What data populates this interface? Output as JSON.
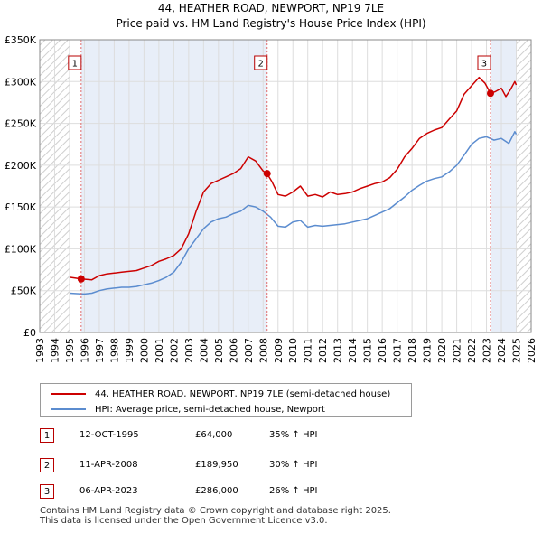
{
  "title": "44, HEATHER ROAD, NEWPORT, NP19 7LE",
  "subtitle": "Price paid vs. HM Land Registry's House Price Index (HPI)",
  "colors": {
    "red": "#cc0000",
    "blue": "#5b8ccf",
    "hatch": "#d0d0d0",
    "grid": "#dddddd",
    "shade": "#e8eef8"
  },
  "legend": {
    "red_label": "44, HEATHER ROAD, NEWPORT, NP19 7LE (semi-detached house)",
    "blue_label": "HPI: Average price, semi-detached house, Newport"
  },
  "transactions": [
    {
      "num": "1",
      "date": "12-OCT-1995",
      "price": "£64,000",
      "hpi": "35% ↑ HPI"
    },
    {
      "num": "2",
      "date": "11-APR-2008",
      "price": "£189,950",
      "hpi": "30% ↑ HPI"
    },
    {
      "num": "3",
      "date": "06-APR-2023",
      "price": "£286,000",
      "hpi": "26% ↑ HPI"
    }
  ],
  "footer": {
    "line1": "Contains HM Land Registry data © Crown copyright and database right 2025.",
    "line2": "This data is licensed under the Open Government Licence v3.0."
  },
  "chart_data": {
    "type": "line",
    "title": "44, HEATHER ROAD, NEWPORT, NP19 7LE",
    "subtitle": "Price paid vs. HM Land Registry's House Price Index (HPI)",
    "xlim": [
      1993,
      2026
    ],
    "ylim": [
      0,
      350000
    ],
    "x_ticks": [
      "1993",
      "1994",
      "1995",
      "1996",
      "1997",
      "1998",
      "1999",
      "2000",
      "2001",
      "2002",
      "2003",
      "2004",
      "2005",
      "2006",
      "2007",
      "2008",
      "2009",
      "2010",
      "2011",
      "2012",
      "2013",
      "2014",
      "2015",
      "2016",
      "2017",
      "2018",
      "2019",
      "2020",
      "2021",
      "2022",
      "2023",
      "2024",
      "2025",
      "2026"
    ],
    "y_ticks": [
      {
        "v": 0,
        "label": "£0"
      },
      {
        "v": 50000,
        "label": "£50K"
      },
      {
        "v": 100000,
        "label": "£100K"
      },
      {
        "v": 150000,
        "label": "£150K"
      },
      {
        "v": 200000,
        "label": "£200K"
      },
      {
        "v": 250000,
        "label": "£250K"
      },
      {
        "v": 300000,
        "label": "£300K"
      },
      {
        "v": 350000,
        "label": "£350K"
      }
    ],
    "hatch_ranges": [
      [
        1993,
        1995.0
      ],
      [
        2025.0,
        2026
      ]
    ],
    "series": [
      {
        "name": "44, HEATHER ROAD, NEWPORT, NP19 7LE (semi-detached house)",
        "color": "#cc0000",
        "x": [
          1995.0,
          1995.78,
          1996.5,
          1997.0,
          1997.5,
          1998.0,
          1998.5,
          1999.0,
          1999.5,
          2000.0,
          2000.5,
          2001.0,
          2001.5,
          2002.0,
          2002.5,
          2003.0,
          2003.5,
          2004.0,
          2004.5,
          2005.0,
          2005.5,
          2006.0,
          2006.5,
          2007.0,
          2007.5,
          2008.0,
          2008.27,
          2008.6,
          2009.0,
          2009.5,
          2010.0,
          2010.5,
          2011.0,
          2011.5,
          2012.0,
          2012.5,
          2013.0,
          2013.5,
          2014.0,
          2014.5,
          2015.0,
          2015.5,
          2016.0,
          2016.5,
          2017.0,
          2017.5,
          2018.0,
          2018.5,
          2019.0,
          2019.5,
          2020.0,
          2020.5,
          2021.0,
          2021.5,
          2022.0,
          2022.5,
          2022.9,
          2023.27,
          2023.6,
          2024.0,
          2024.3,
          2024.6,
          2024.9,
          2025.0
        ],
        "values": [
          66000,
          64000,
          63000,
          68000,
          70000,
          71000,
          72000,
          73000,
          74000,
          77000,
          80000,
          85000,
          88000,
          92000,
          100000,
          118000,
          145000,
          168000,
          178000,
          182000,
          186000,
          190000,
          196000,
          210000,
          205000,
          193000,
          189950,
          180000,
          165000,
          163000,
          168000,
          175000,
          163000,
          165000,
          162000,
          168000,
          165000,
          166000,
          168000,
          172000,
          175000,
          178000,
          180000,
          185000,
          195000,
          210000,
          220000,
          232000,
          238000,
          242000,
          245000,
          255000,
          265000,
          285000,
          295000,
          305000,
          298000,
          286000,
          288000,
          292000,
          282000,
          290000,
          300000,
          296000
        ]
      },
      {
        "name": "HPI: Average price, semi-detached house, Newport",
        "color": "#5b8ccf",
        "x": [
          1995.0,
          1995.5,
          1996.0,
          1996.5,
          1997.0,
          1997.5,
          1998.0,
          1998.5,
          1999.0,
          1999.5,
          2000.0,
          2000.5,
          2001.0,
          2001.5,
          2002.0,
          2002.5,
          2003.0,
          2003.5,
          2004.0,
          2004.5,
          2005.0,
          2005.5,
          2006.0,
          2006.5,
          2007.0,
          2007.5,
          2008.0,
          2008.5,
          2009.0,
          2009.5,
          2010.0,
          2010.5,
          2011.0,
          2011.5,
          2012.0,
          2012.5,
          2013.0,
          2013.5,
          2014.0,
          2014.5,
          2015.0,
          2015.5,
          2016.0,
          2016.5,
          2017.0,
          2017.5,
          2018.0,
          2018.5,
          2019.0,
          2019.5,
          2020.0,
          2020.5,
          2021.0,
          2021.5,
          2022.0,
          2022.5,
          2023.0,
          2023.5,
          2024.0,
          2024.5,
          2024.9,
          2025.0
        ],
        "values": [
          47000,
          46500,
          46000,
          47000,
          50000,
          52000,
          53000,
          54000,
          54000,
          55000,
          57000,
          59000,
          62000,
          66000,
          72000,
          84000,
          100000,
          112000,
          124000,
          132000,
          136000,
          138000,
          142000,
          145000,
          152000,
          150000,
          145000,
          138000,
          127000,
          126000,
          132000,
          134000,
          126000,
          128000,
          127000,
          128000,
          129000,
          130000,
          132000,
          134000,
          136000,
          140000,
          144000,
          148000,
          155000,
          162000,
          170000,
          176000,
          181000,
          184000,
          186000,
          192000,
          200000,
          212000,
          225000,
          232000,
          234000,
          230000,
          232000,
          226000,
          240000,
          237000
        ]
      }
    ],
    "markers": [
      {
        "label": "1",
        "x": 1995.78,
        "y": 64000
      },
      {
        "label": "2",
        "x": 2008.27,
        "y": 189950
      },
      {
        "label": "3",
        "x": 2023.27,
        "y": 286000
      }
    ]
  }
}
